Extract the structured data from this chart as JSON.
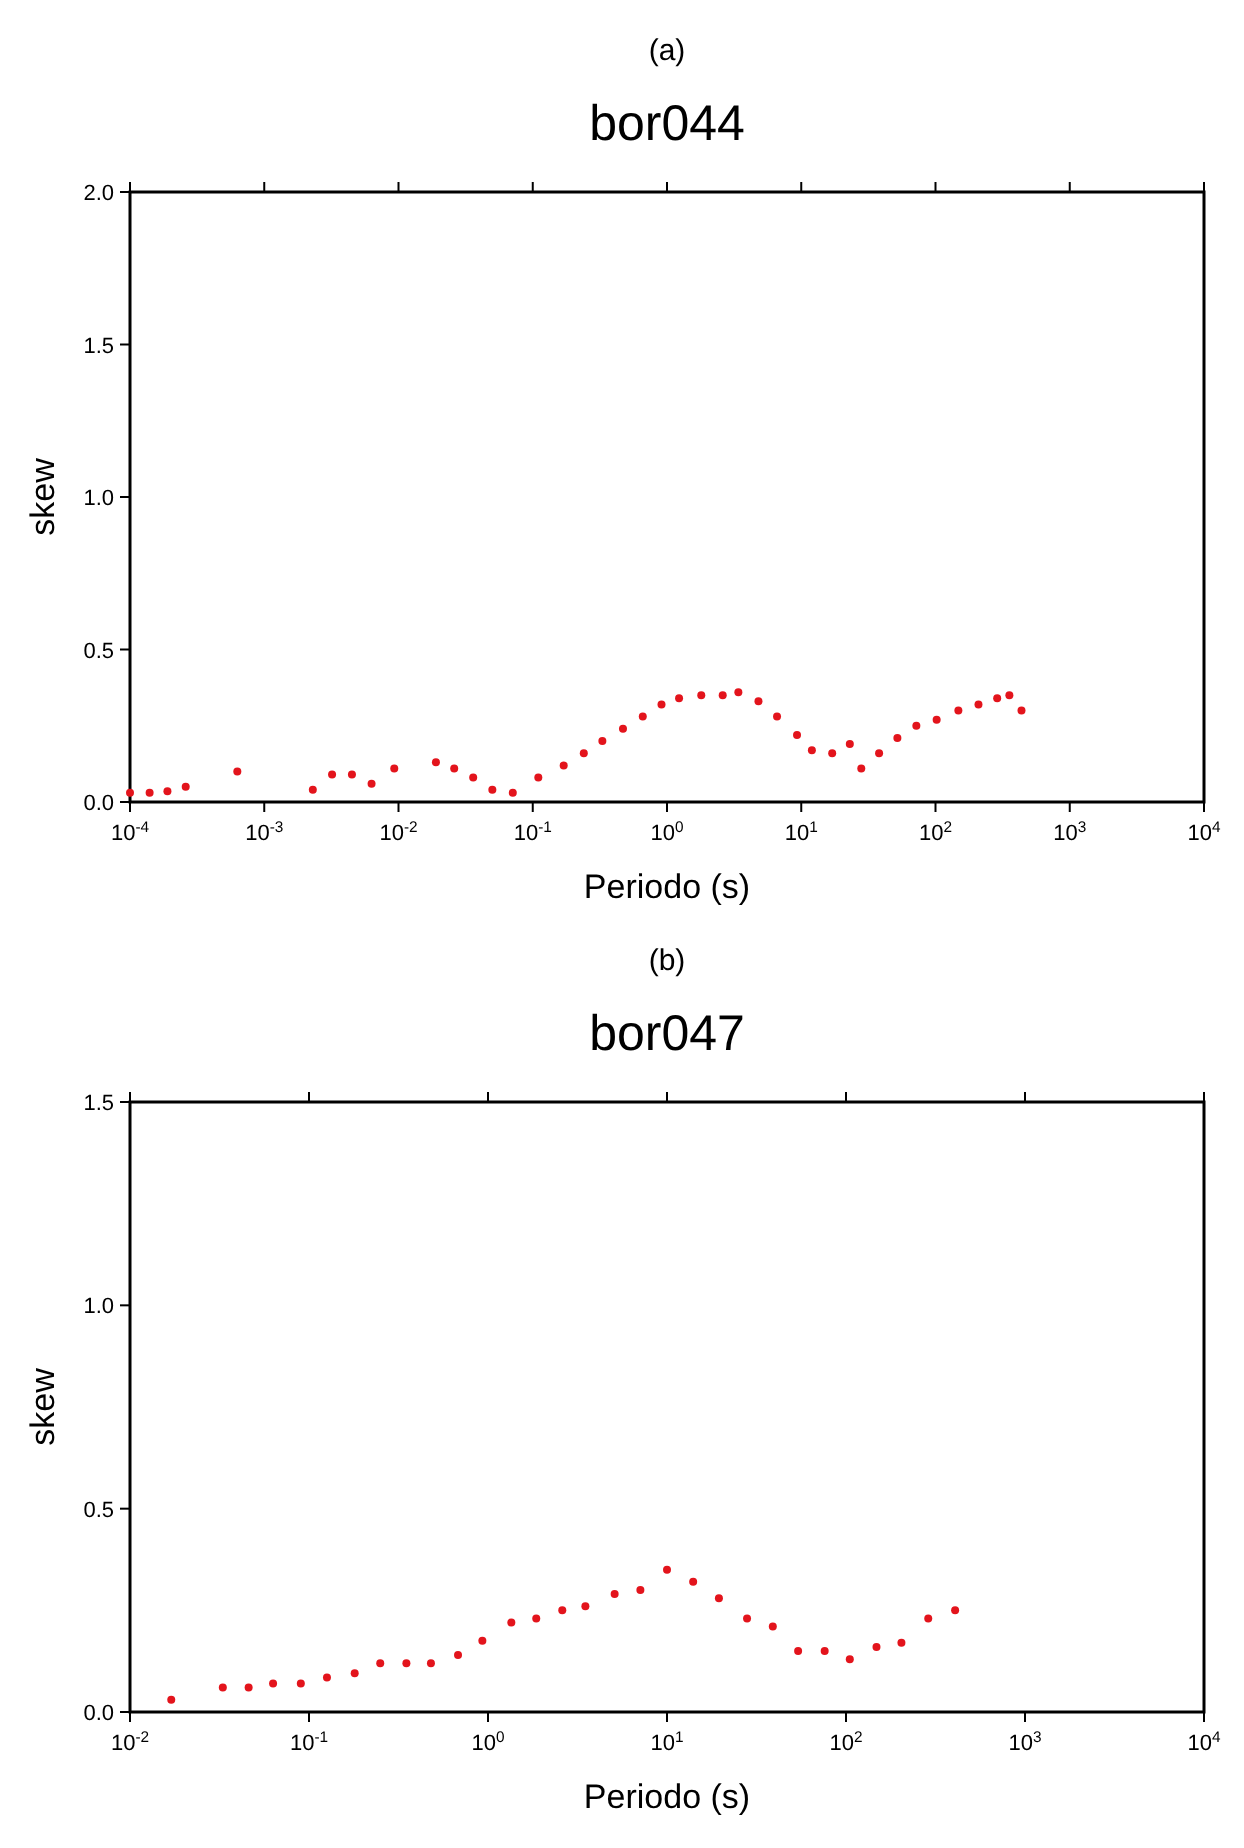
{
  "chart_data": [
    {
      "type": "scatter",
      "annotations": [
        "(a)"
      ],
      "title": "bor044",
      "xlabel": "Periodo (s)",
      "ylabel": "skew",
      "log": "x",
      "marker": "circle",
      "xlim": [
        0.0001,
        10000
      ],
      "xticks": [
        {
          "value": 0.0001,
          "label": "10$^{-4}$"
        },
        {
          "value": 0.001,
          "label": "10$^{-3}$"
        },
        {
          "value": 0.01,
          "label": "10$^{-2}$"
        },
        {
          "value": 0.1,
          "label": "10$^{-1}$"
        },
        {
          "value": 1,
          "label": "10$^{0}$"
        },
        {
          "value": 10,
          "label": "10$^{1}$"
        },
        {
          "value": 100,
          "label": "10$^{2}$"
        },
        {
          "value": 1000,
          "label": "10$^{3}$"
        },
        {
          "value": 10000,
          "label": "10$^{4}$"
        }
      ],
      "ylim": [
        0,
        2
      ],
      "yticks": [
        {
          "value": 0,
          "label": "0.0"
        },
        {
          "value": 0.5,
          "label": "0.5"
        },
        {
          "value": 1,
          "label": "1.0"
        },
        {
          "value": 1.5,
          "label": "1.5"
        },
        {
          "value": 2,
          "label": "2.0"
        }
      ],
      "series": [
        {
          "color": "#e3141c",
          "x": [
            0.0001,
            0.00014,
            0.00019,
            0.00026,
            0.00063,
            0.0023,
            0.0032,
            0.0045,
            0.0063,
            0.0093,
            0.019,
            0.026,
            0.036,
            0.05,
            0.071,
            0.11,
            0.17,
            0.24,
            0.33,
            0.47,
            0.66,
            0.91,
            1.23,
            1.8,
            2.6,
            3.4,
            4.8,
            6.6,
            9.3,
            12,
            17,
            23,
            28,
            38,
            52,
            72,
            102,
            148,
            209,
            288,
            355,
            437
          ],
          "values": [
            0.03,
            0.03,
            0.035,
            0.05,
            0.1,
            0.04,
            0.09,
            0.09,
            0.06,
            0.11,
            0.13,
            0.11,
            0.08,
            0.04,
            0.03,
            0.08,
            0.12,
            0.16,
            0.2,
            0.24,
            0.28,
            0.32,
            0.34,
            0.35,
            0.35,
            0.36,
            0.33,
            0.28,
            0.22,
            0.17,
            0.16,
            0.19,
            0.11,
            0.16,
            0.21,
            0.25,
            0.27,
            0.3,
            0.32,
            0.34,
            0.35,
            0.3
          ]
        }
      ]
    },
    {
      "type": "scatter",
      "annotations": [
        "(b)"
      ],
      "title": "bor047",
      "xlabel": "Periodo (s)",
      "ylabel": "skew",
      "log": "x",
      "marker": "circle",
      "xlim": [
        0.01,
        10000
      ],
      "xticks": [
        {
          "value": 0.01,
          "label": "10$^{-2}$"
        },
        {
          "value": 0.1,
          "label": "10$^{-1}$"
        },
        {
          "value": 1,
          "label": "10$^{0}$"
        },
        {
          "value": 10,
          "label": "10$^{1}$"
        },
        {
          "value": 100,
          "label": "10$^{2}$"
        },
        {
          "value": 1000,
          "label": "10$^{3}$"
        },
        {
          "value": 10000,
          "label": "10$^{4}$"
        }
      ],
      "ylim": [
        0,
        1.5
      ],
      "yticks": [
        {
          "value": 0,
          "label": "0.0"
        },
        {
          "value": 0.5,
          "label": "0.5"
        },
        {
          "value": 1,
          "label": "1.0"
        },
        {
          "value": 1.5,
          "label": "1.5"
        }
      ],
      "series": [
        {
          "color": "#e3141c",
          "x": [
            0.017,
            0.033,
            0.046,
            0.063,
            0.09,
            0.126,
            0.18,
            0.25,
            0.35,
            0.48,
            0.68,
            0.93,
            1.35,
            1.86,
            2.6,
            3.5,
            5.1,
            7.1,
            10,
            14,
            19.5,
            28,
            39,
            54,
            76,
            105,
            148,
            204,
            288,
            407
          ],
          "values": [
            0.03,
            0.06,
            0.06,
            0.07,
            0.07,
            0.085,
            0.095,
            0.12,
            0.12,
            0.12,
            0.14,
            0.175,
            0.22,
            0.23,
            0.25,
            0.26,
            0.29,
            0.3,
            0.35,
            0.32,
            0.28,
            0.23,
            0.21,
            0.15,
            0.15,
            0.13,
            0.16,
            0.17,
            0.23,
            0.25
          ]
        }
      ]
    }
  ]
}
